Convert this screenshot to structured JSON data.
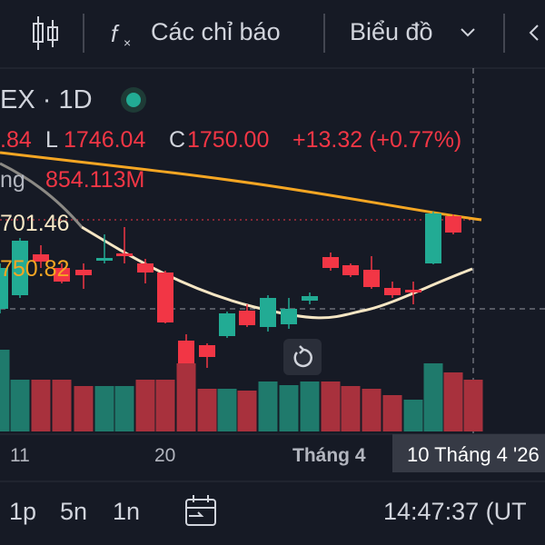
{
  "toolbar": {
    "indicators": "Các chỉ báo",
    "chart": "Biểu đồ"
  },
  "legend": {
    "symbol": "EX · 1D",
    "high_tail": ".84",
    "low_label": "L",
    "low": "1746.04",
    "close_label": "C",
    "close": "1750.00",
    "change": "+13.32 (+0.77%)",
    "volume_label": "ng",
    "volume": "854.113M",
    "ma1": "701.46",
    "ma2": "750.82"
  },
  "x_axis": {
    "labels": [
      "11",
      "20",
      "Tháng 4"
    ],
    "crosshair": "10 Tháng 4 '26"
  },
  "footer": {
    "intervals": [
      "1p",
      "5n",
      "1n"
    ],
    "time": "14:47:37 (UT"
  }
}
